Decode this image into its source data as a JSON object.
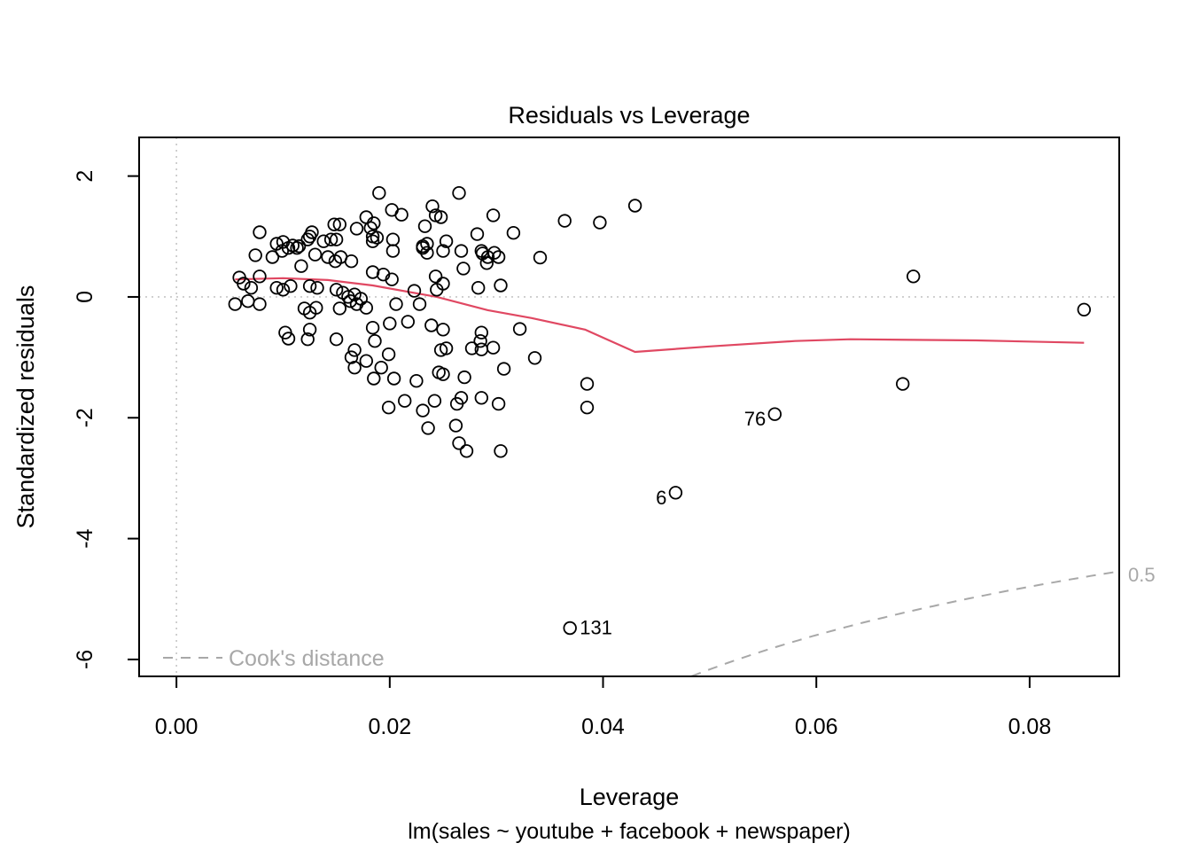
{
  "chart_data": {
    "type": "scatter",
    "title": "Residuals vs Leverage",
    "xlabel": "Leverage",
    "sublabel": "lm(sales ~ youtube + facebook + newspaper)",
    "ylabel": "Standardized residuals",
    "xlim": [
      -0.0035,
      0.0884
    ],
    "ylim": [
      -6.28,
      2.64
    ],
    "grid": false,
    "x_ticks": {
      "values": [
        0.0,
        0.02,
        0.04,
        0.06,
        0.08
      ],
      "labels": [
        "0.00",
        "0.02",
        "0.04",
        "0.06",
        "0.08"
      ]
    },
    "y_ticks": {
      "values": [
        2,
        0,
        -2,
        -4,
        -6
      ],
      "labels": [
        "2",
        "0",
        "-2",
        "-4",
        "-6"
      ]
    },
    "reference_lines": {
      "horizontal_y": 0,
      "vertical_x": 0
    },
    "points": {
      "x": [
        0.019,
        0.0265,
        0.043,
        0.024,
        0.0243,
        0.0202,
        0.0211,
        0.0297,
        0.0178,
        0.0248,
        0.0364,
        0.0397,
        0.0153,
        0.0148,
        0.0233,
        0.0185,
        0.0182,
        0.0169,
        0.0078,
        0.0127,
        0.0316,
        0.0282,
        0.0188,
        0.0203,
        0.015,
        0.0125,
        0.0184,
        0.0123,
        0.0145,
        0.0138,
        0.0184,
        0.01,
        0.0094,
        0.0235,
        0.0109,
        0.0115,
        0.0231,
        0.0105,
        0.0113,
        0.0231,
        0.0253,
        0.0286,
        0.0298,
        0.025,
        0.0099,
        0.0074,
        0.009,
        0.013,
        0.0142,
        0.0154,
        0.0149,
        0.0164,
        0.0203,
        0.0235,
        0.0267,
        0.0287,
        0.0292,
        0.0302,
        0.0291,
        0.0341,
        0.0117,
        0.0269,
        0.0184,
        0.0194,
        0.0243,
        0.0691,
        0.0202,
        0.0059,
        0.0078,
        0.0063,
        0.025,
        0.0304,
        0.007,
        0.0094,
        0.01,
        0.0107,
        0.0125,
        0.0132,
        0.0283,
        0.015,
        0.0244,
        0.0223,
        0.0156,
        0.0161,
        0.0167,
        0.0173,
        0.0055,
        0.0067,
        0.0078,
        0.012,
        0.0125,
        0.0131,
        0.0153,
        0.0163,
        0.0169,
        0.0178,
        0.0206,
        0.0228,
        0.0851,
        0.0102,
        0.0125,
        0.0184,
        0.02,
        0.0217,
        0.0239,
        0.0105,
        0.0123,
        0.015,
        0.0186,
        0.025,
        0.0286,
        0.0322,
        0.0167,
        0.0164,
        0.0178,
        0.0167,
        0.0199,
        0.0192,
        0.0185,
        0.0204,
        0.0225,
        0.0248,
        0.0246,
        0.0253,
        0.0277,
        0.0285,
        0.0286,
        0.0297,
        0.0336,
        0.0307,
        0.025,
        0.027,
        0.0214,
        0.0199,
        0.0231,
        0.0242,
        0.0267,
        0.0263,
        0.0286,
        0.0302,
        0.0236,
        0.0262,
        0.0265,
        0.0272,
        0.0304,
        0.0385,
        0.0385,
        0.0681
      ],
      "y": [
        1.72,
        1.72,
        1.51,
        1.5,
        1.35,
        1.44,
        1.36,
        1.35,
        1.32,
        1.32,
        1.26,
        1.23,
        1.2,
        1.2,
        1.17,
        1.22,
        1.14,
        1.13,
        1.07,
        1.07,
        1.06,
        1.04,
        0.98,
        0.95,
        0.95,
        1.0,
        1.0,
        0.95,
        0.95,
        0.92,
        0.92,
        0.91,
        0.88,
        0.88,
        0.85,
        0.84,
        0.84,
        0.81,
        0.81,
        0.81,
        0.92,
        0.76,
        0.73,
        0.76,
        0.76,
        0.69,
        0.66,
        0.7,
        0.66,
        0.66,
        0.59,
        0.59,
        0.76,
        0.73,
        0.76,
        0.72,
        0.66,
        0.66,
        0.56,
        0.65,
        0.51,
        0.47,
        0.41,
        0.37,
        0.34,
        0.34,
        0.29,
        0.32,
        0.34,
        0.22,
        0.22,
        0.19,
        0.15,
        0.15,
        0.12,
        0.18,
        0.18,
        0.15,
        0.15,
        0.12,
        0.12,
        0.1,
        0.07,
        0.0,
        0.04,
        -0.03,
        -0.12,
        -0.07,
        -0.12,
        -0.19,
        -0.26,
        -0.18,
        -0.19,
        -0.07,
        -0.12,
        -0.18,
        -0.12,
        -0.12,
        -0.21,
        -0.59,
        -0.54,
        -0.51,
        -0.44,
        -0.41,
        -0.47,
        -0.69,
        -0.7,
        -0.7,
        -0.73,
        -0.54,
        -0.59,
        -0.53,
        -0.88,
        -1.0,
        -1.06,
        -1.17,
        -0.95,
        -1.17,
        -1.35,
        -1.35,
        -1.39,
        -0.88,
        -1.25,
        -0.85,
        -0.85,
        -0.73,
        -0.87,
        -0.84,
        -1.01,
        -1.19,
        -1.28,
        -1.33,
        -1.72,
        -1.83,
        -1.88,
        -1.72,
        -1.67,
        -1.77,
        -1.67,
        -1.77,
        -2.17,
        -2.13,
        -2.42,
        -2.55,
        -2.55,
        -1.44,
        -1.83,
        -1.44
      ]
    },
    "labeled_points": [
      {
        "label": "76",
        "x": 0.0561,
        "y": -1.94,
        "side": "left"
      },
      {
        "label": "6",
        "x": 0.0468,
        "y": -3.24,
        "side": "left"
      },
      {
        "label": "131",
        "x": 0.0369,
        "y": -5.48,
        "side": "right"
      }
    ],
    "smooth_line": {
      "x": [
        0.0055,
        0.01,
        0.0142,
        0.0184,
        0.0244,
        0.0292,
        0.0333,
        0.0383,
        0.043,
        0.05,
        0.058,
        0.0632,
        0.075,
        0.0851
      ],
      "y": [
        0.29,
        0.31,
        0.28,
        0.19,
        0.0,
        -0.22,
        -0.35,
        -0.54,
        -0.91,
        -0.82,
        -0.73,
        -0.7,
        -0.72,
        -0.76
      ]
    },
    "cooks_contour": {
      "level": 0.5,
      "level_label": "0.5",
      "num_model_params": 4,
      "x_start": 0.0483,
      "x_end": 0.0884
    },
    "legend": {
      "label": "Cook's distance",
      "position": "bottom-left"
    },
    "colors": {
      "point_stroke": "#000000",
      "smooth_line": "#e04862",
      "reference_dotted": "#c6c6c6",
      "cooks_gray": "#a8a8a8",
      "text": "#000000",
      "background": "#ffffff"
    }
  }
}
